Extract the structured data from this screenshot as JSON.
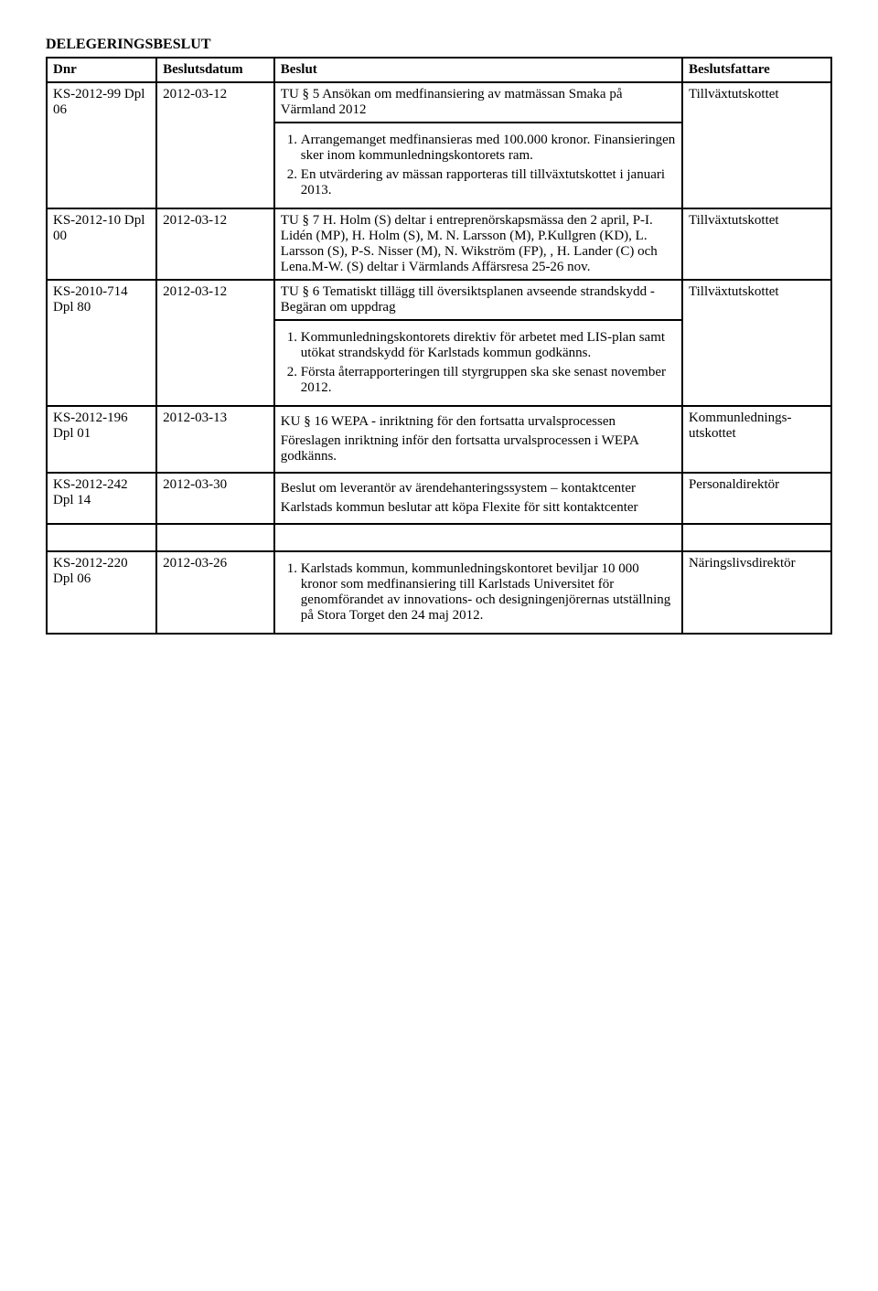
{
  "title": "DELEGERINGSBESLUT",
  "headers": {
    "dnr": "Dnr",
    "datum": "Beslutsdatum",
    "beslut": "Beslut",
    "bf": "Beslutsfattare"
  },
  "rows": {
    "r0": {
      "intro": "TU § 5 Ansökan om medfinansiering av matmässan Smaka på Värmland 2012"
    },
    "r1": {
      "dnr": "KS-2012-99 Dpl 06",
      "date": "2012-03-12",
      "li1": "Arrangemanget medfinansieras med 100.000 kronor. Finansieringen sker inom kommunledningskontorets ram.",
      "li2": "En utvärdering av mässan rapporteras till tillväxtutskottet i januari 2013.",
      "bf": "Tillväxtutskottet"
    },
    "r2": {
      "dnr": "KS-2012-10 Dpl 00",
      "date": "2012-03-12",
      "text": "TU § 7 H. Holm (S) deltar i entreprenörskapsmässa den 2 april, P-I. Lidén (MP), H. Holm (S), M. N. Larsson (M), P.Kullgren (KD), L. Larsson (S), P-S. Nisser (M), N. Wikström (FP), , H. Lander (C) och Lena.M-W. (S) deltar i Värmlands Affärsresa 25-26 nov.",
      "bf": "Tillväxtutskottet"
    },
    "r3a": {
      "intro": "TU § 6 Tematiskt tillägg till översiktsplanen avseende strandskydd - Begäran om uppdrag"
    },
    "r3": {
      "dnr": "KS-2010-714 Dpl 80",
      "date": "2012-03-12",
      "li1": "Kommunledningskontorets direktiv för arbetet med LIS-plan samt utökat strandskydd för Karlstads kommun godkänns.",
      "li2": "Första återrapporteringen till styrgruppen ska ske senast november 2012.",
      "bf": "Tillväxtutskottet"
    },
    "r4": {
      "dnr": "KS-2012-196 Dpl 01",
      "date": "2012-03-13",
      "p1": "KU § 16 WEPA - inriktning för den fortsatta urvalsprocessen",
      "p2": "Föreslagen inriktning inför den fortsatta urvalsprocessen i WEPA godkänns.",
      "bf": "Kommunlednings-utskottet"
    },
    "r5": {
      "dnr": "KS-2012-242 Dpl 14",
      "date": "2012-03-30",
      "p1": "Beslut om leverantör av ärendehanteringssystem – kontaktcenter",
      "p2": "Karlstads kommun beslutar att köpa Flexite för sitt kontaktcenter",
      "bf": "Personaldirektör"
    },
    "r6": {
      "dnr": "KS-2012-220 Dpl 06",
      "date": "2012-03-26",
      "li1": "Karlstads kommun, kommunledningskontoret beviljar 10 000 kronor som medfinansiering till Karlstads Universitet för genomförandet av innovations- och designingenjörernas utställning på Stora Torget den 24 maj 2012.",
      "bf": "Näringslivsdirektör"
    }
  }
}
